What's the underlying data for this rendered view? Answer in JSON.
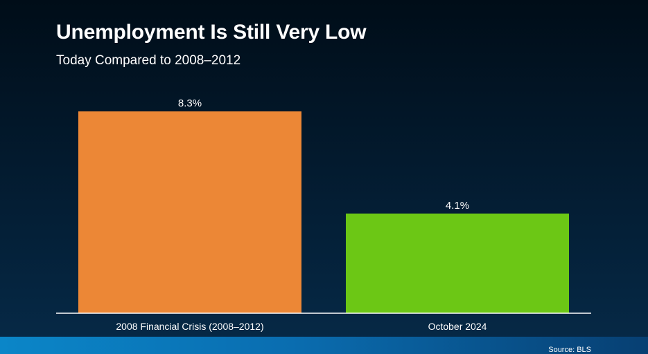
{
  "title": "Unemployment Is Still Very Low",
  "subtitle": "Today Compared to 2008–2012",
  "source": "Source: BLS",
  "colors": {
    "bar_2008": "#ec8736",
    "bar_2024": "#6cc715",
    "axis": "#ffffff"
  },
  "chart_data": {
    "type": "bar",
    "title": "Unemployment Is Still Very Low",
    "subtitle": "Today Compared to 2008–2012",
    "categories": [
      "2008 Financial Crisis (2008–2012)",
      "October 2024"
    ],
    "values": [
      8.3,
      4.1
    ],
    "value_labels": [
      "8.3%",
      "4.1%"
    ],
    "colors": [
      "#ec8736",
      "#6cc715"
    ],
    "ylim": [
      0,
      9.1
    ],
    "grid": false,
    "legend": "none"
  }
}
